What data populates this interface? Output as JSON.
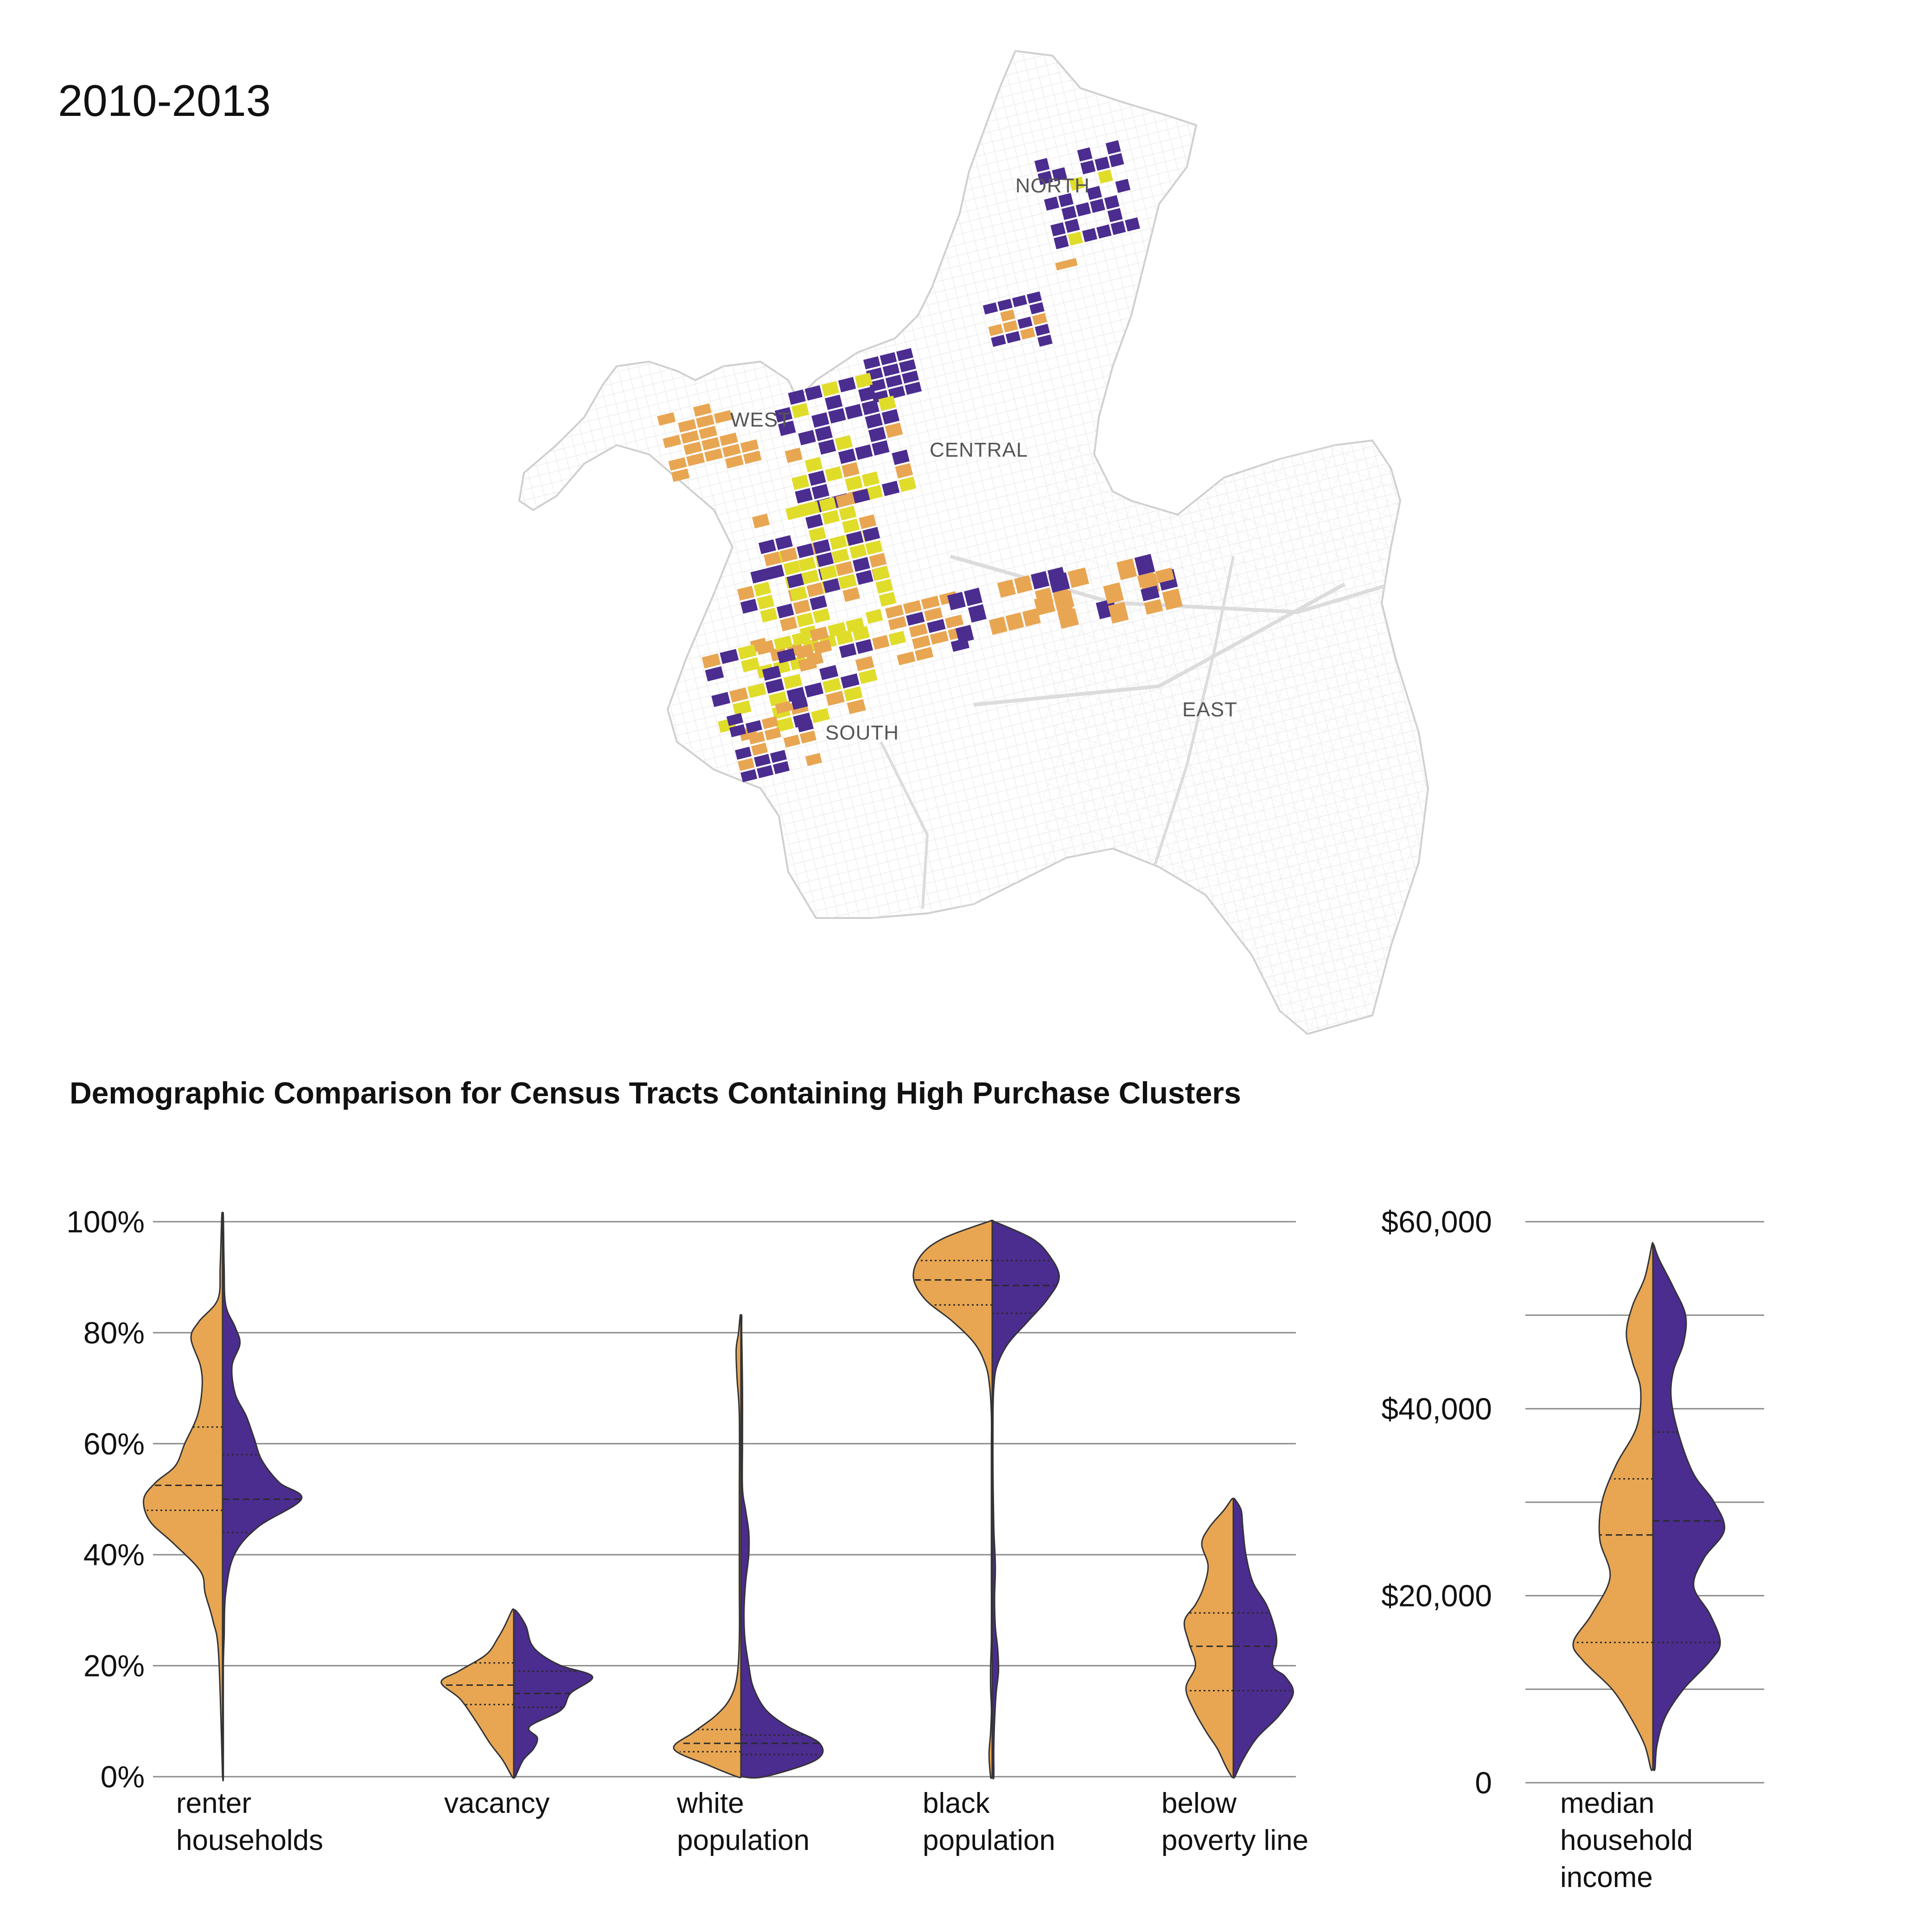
{
  "period_label": "2010-2013",
  "colors": {
    "orange": "#E8A652",
    "purple": "#4B2C8F",
    "yellow": "#E0DC2A",
    "outline": "#333333",
    "grid": "#8c8c8c",
    "street": "#e2e2e2"
  },
  "map": {
    "regions": [
      "NORTH",
      "WEST",
      "CENTRAL",
      "SOUTH",
      "EAST"
    ],
    "fill_categories": [
      "orange",
      "purple",
      "yellow"
    ]
  },
  "chart_title": "Demographic Comparison for Census Tracts Containing High Purchase Clusters",
  "chart_data": [
    {
      "type": "violin",
      "split": true,
      "halves": [
        "orange",
        "purple"
      ],
      "ylim": [
        0,
        100
      ],
      "yticks": [
        "0%",
        "20%",
        "40%",
        "60%",
        "80%",
        "100%"
      ],
      "categories": [
        {
          "label_lines": [
            "renter",
            "households"
          ],
          "range": [
            0,
            101
          ],
          "orange": {
            "quartiles": [
              48,
              52.5,
              63
            ],
            "profile": [
              [
                22,
                0.05
              ],
              [
                28,
                0.12
              ],
              [
                33,
                0.22
              ],
              [
                37,
                0.28
              ],
              [
                42,
                0.62
              ],
              [
                46,
                0.92
              ],
              [
                50,
                1
              ],
              [
                53,
                0.85
              ],
              [
                56,
                0.6
              ],
              [
                60,
                0.48
              ],
              [
                65,
                0.32
              ],
              [
                70,
                0.26
              ],
              [
                74,
                0.28
              ],
              [
                79,
                0.4
              ],
              [
                82,
                0.3
              ],
              [
                86,
                0.06
              ],
              [
                92,
                0.03
              ],
              [
                101,
                0.01
              ]
            ]
          },
          "purple": {
            "quartiles": [
              44,
              50,
              58
            ],
            "profile": [
              [
                0,
                0.01
              ],
              [
                10,
                0.01
              ],
              [
                20,
                0.01
              ],
              [
                25,
                0.02
              ],
              [
                33,
                0.04
              ],
              [
                40,
                0.15
              ],
              [
                45,
                0.45
              ],
              [
                50,
                1
              ],
              [
                53,
                0.72
              ],
              [
                57,
                0.5
              ],
              [
                61,
                0.4
              ],
              [
                65,
                0.3
              ],
              [
                69,
                0.16
              ],
              [
                74,
                0.12
              ],
              [
                78,
                0.22
              ],
              [
                81,
                0.16
              ],
              [
                85,
                0.04
              ],
              [
                92,
                0.02
              ],
              [
                101,
                0.01
              ]
            ]
          }
        },
        {
          "label_lines": [
            "vacancy"
          ],
          "range": [
            0,
            30
          ],
          "orange": {
            "quartiles": [
              13,
              16.5,
              20.5
            ],
            "profile": [
              [
                0,
                0.02
              ],
              [
                3,
                0.14
              ],
              [
                6,
                0.3
              ],
              [
                10,
                0.48
              ],
              [
                14,
                0.68
              ],
              [
                17,
                0.92
              ],
              [
                19,
                0.7
              ],
              [
                22,
                0.35
              ],
              [
                25,
                0.2
              ],
              [
                27,
                0.12
              ],
              [
                30,
                0.02
              ]
            ]
          },
          "purple": {
            "quartiles": [
              12.5,
              15,
              19
            ],
            "profile": [
              [
                0,
                0.02
              ],
              [
                3,
                0.12
              ],
              [
                5,
                0.25
              ],
              [
                7,
                0.3
              ],
              [
                9,
                0.2
              ],
              [
                12,
                0.6
              ],
              [
                15,
                0.72
              ],
              [
                18,
                1
              ],
              [
                20,
                0.6
              ],
              [
                22,
                0.35
              ],
              [
                24,
                0.22
              ],
              [
                27,
                0.16
              ],
              [
                29,
                0.08
              ],
              [
                30,
                0.02
              ]
            ]
          }
        },
        {
          "label_lines": [
            "white",
            "population"
          ],
          "range": [
            0,
            83
          ],
          "orange": {
            "quartiles": [
              4.5,
              6,
              8.5
            ],
            "profile": [
              [
                0,
                0.05
              ],
              [
                2,
                0.4
              ],
              [
                5,
                0.85
              ],
              [
                8,
                0.6
              ],
              [
                11,
                0.32
              ],
              [
                14,
                0.14
              ],
              [
                18,
                0.05
              ],
              [
                25,
                0.02
              ],
              [
                35,
                0.02
              ],
              [
                50,
                0.02
              ],
              [
                65,
                0.02
              ],
              [
                72,
                0.05
              ],
              [
                77,
                0.06
              ],
              [
                80,
                0.03
              ],
              [
                83,
                0.01
              ]
            ]
          },
          "purple": {
            "quartiles": [
              4,
              6,
              7.5
            ],
            "profile": [
              [
                0,
                0.3
              ],
              [
                3,
                0.95
              ],
              [
                6,
                1
              ],
              [
                9,
                0.6
              ],
              [
                12,
                0.32
              ],
              [
                16,
                0.16
              ],
              [
                20,
                0.1
              ],
              [
                25,
                0.05
              ],
              [
                30,
                0.04
              ],
              [
                35,
                0.06
              ],
              [
                40,
                0.1
              ],
              [
                44,
                0.1
              ],
              [
                48,
                0.06
              ],
              [
                52,
                0.02
              ],
              [
                60,
                0.02
              ],
              [
                70,
                0.02
              ],
              [
                80,
                0.01
              ],
              [
                83,
                0.01
              ]
            ]
          }
        },
        {
          "label_lines": [
            "black",
            "population"
          ],
          "range": [
            0,
            100
          ],
          "orange": {
            "quartiles": [
              85,
              89.5,
              93
            ],
            "profile": [
              [
                0,
                0.02
              ],
              [
                4,
                0.04
              ],
              [
                8,
                0.02
              ],
              [
                12,
                0.01
              ],
              [
                16,
                0.02
              ],
              [
                20,
                0.02
              ],
              [
                25,
                0.01
              ],
              [
                35,
                0.01
              ],
              [
                45,
                0.01
              ],
              [
                55,
                0.01
              ],
              [
                60,
                0.01
              ],
              [
                65,
                0.01
              ],
              [
                70,
                0.03
              ],
              [
                74,
                0.08
              ],
              [
                78,
                0.22
              ],
              [
                82,
                0.5
              ],
              [
                86,
                0.85
              ],
              [
                90,
                1
              ],
              [
                94,
                0.9
              ],
              [
                97,
                0.62
              ],
              [
                100,
                0.05
              ]
            ]
          },
          "purple": {
            "quartiles": [
              83.5,
              88.5,
              93
            ],
            "profile": [
              [
                0,
                0.02
              ],
              [
                5,
                0.02
              ],
              [
                10,
                0.03
              ],
              [
                15,
                0.05
              ],
              [
                19,
                0.08
              ],
              [
                23,
                0.07
              ],
              [
                27,
                0.04
              ],
              [
                32,
                0.03
              ],
              [
                38,
                0.04
              ],
              [
                45,
                0.02
              ],
              [
                55,
                0.01
              ],
              [
                65,
                0.01
              ],
              [
                70,
                0.02
              ],
              [
                74,
                0.06
              ],
              [
                78,
                0.2
              ],
              [
                82,
                0.45
              ],
              [
                86,
                0.7
              ],
              [
                90,
                0.85
              ],
              [
                94,
                0.72
              ],
              [
                97,
                0.5
              ],
              [
                100,
                0.03
              ]
            ]
          }
        },
        {
          "label_lines": [
            "below",
            "poverty line"
          ],
          "range": [
            0,
            50
          ],
          "orange": {
            "quartiles": [
              15.5,
              23.5,
              29.5
            ],
            "profile": [
              [
                0,
                0.02
              ],
              [
                2,
                0.1
              ],
              [
                5,
                0.2
              ],
              [
                8,
                0.34
              ],
              [
                12,
                0.5
              ],
              [
                16,
                0.6
              ],
              [
                20,
                0.48
              ],
              [
                24,
                0.56
              ],
              [
                28,
                0.62
              ],
              [
                31,
                0.48
              ],
              [
                34,
                0.38
              ],
              [
                38,
                0.32
              ],
              [
                42,
                0.4
              ],
              [
                45,
                0.3
              ],
              [
                48,
                0.12
              ],
              [
                50,
                0.02
              ]
            ]
          },
          "purple": {
            "quartiles": [
              15.5,
              23.5,
              29.5
            ],
            "profile": [
              [
                0,
                0.02
              ],
              [
                3,
                0.12
              ],
              [
                7,
                0.3
              ],
              [
                11,
                0.58
              ],
              [
                15,
                0.76
              ],
              [
                18,
                0.66
              ],
              [
                20,
                0.5
              ],
              [
                24,
                0.55
              ],
              [
                27,
                0.52
              ],
              [
                31,
                0.42
              ],
              [
                35,
                0.25
              ],
              [
                40,
                0.16
              ],
              [
                45,
                0.12
              ],
              [
                48,
                0.1
              ],
              [
                50,
                0.02
              ]
            ]
          }
        }
      ]
    },
    {
      "type": "violin",
      "split": true,
      "halves": [
        "orange",
        "purple"
      ],
      "ylim": [
        0,
        60000
      ],
      "yticks": [
        "0",
        "$20,000",
        "$40,000",
        "$60,000"
      ],
      "extra_gridlines": [
        10000,
        30000,
        50000
      ],
      "categories": [
        {
          "label_lines": [
            "median",
            "household",
            "income"
          ],
          "range": [
            1500,
            57500
          ],
          "orange": {
            "quartiles": [
              15000,
              26500,
              32500
            ],
            "profile": [
              [
                1500,
                0.02
              ],
              [
                4000,
                0.08
              ],
              [
                7000,
                0.22
              ],
              [
                10000,
                0.4
              ],
              [
                13000,
                0.68
              ],
              [
                15000,
                0.78
              ],
              [
                18000,
                0.6
              ],
              [
                22000,
                0.42
              ],
              [
                26000,
                0.52
              ],
              [
                30000,
                0.5
              ],
              [
                34000,
                0.36
              ],
              [
                38000,
                0.16
              ],
              [
                42000,
                0.12
              ],
              [
                45000,
                0.2
              ],
              [
                48000,
                0.26
              ],
              [
                51000,
                0.2
              ],
              [
                54000,
                0.08
              ],
              [
                57500,
                0.01
              ]
            ]
          },
          "purple": {
            "quartiles": [
              15000,
              28000,
              37500
            ],
            "profile": [
              [
                1500,
                0.02
              ],
              [
                4000,
                0.04
              ],
              [
                7000,
                0.12
              ],
              [
                10000,
                0.3
              ],
              [
                13000,
                0.56
              ],
              [
                15000,
                0.66
              ],
              [
                18000,
                0.56
              ],
              [
                21000,
                0.4
              ],
              [
                24000,
                0.5
              ],
              [
                27000,
                0.7
              ],
              [
                30000,
                0.6
              ],
              [
                33000,
                0.4
              ],
              [
                37000,
                0.26
              ],
              [
                41000,
                0.18
              ],
              [
                44000,
                0.2
              ],
              [
                47000,
                0.3
              ],
              [
                50000,
                0.32
              ],
              [
                53000,
                0.2
              ],
              [
                56000,
                0.06
              ],
              [
                57500,
                0.01
              ]
            ]
          }
        }
      ]
    }
  ]
}
